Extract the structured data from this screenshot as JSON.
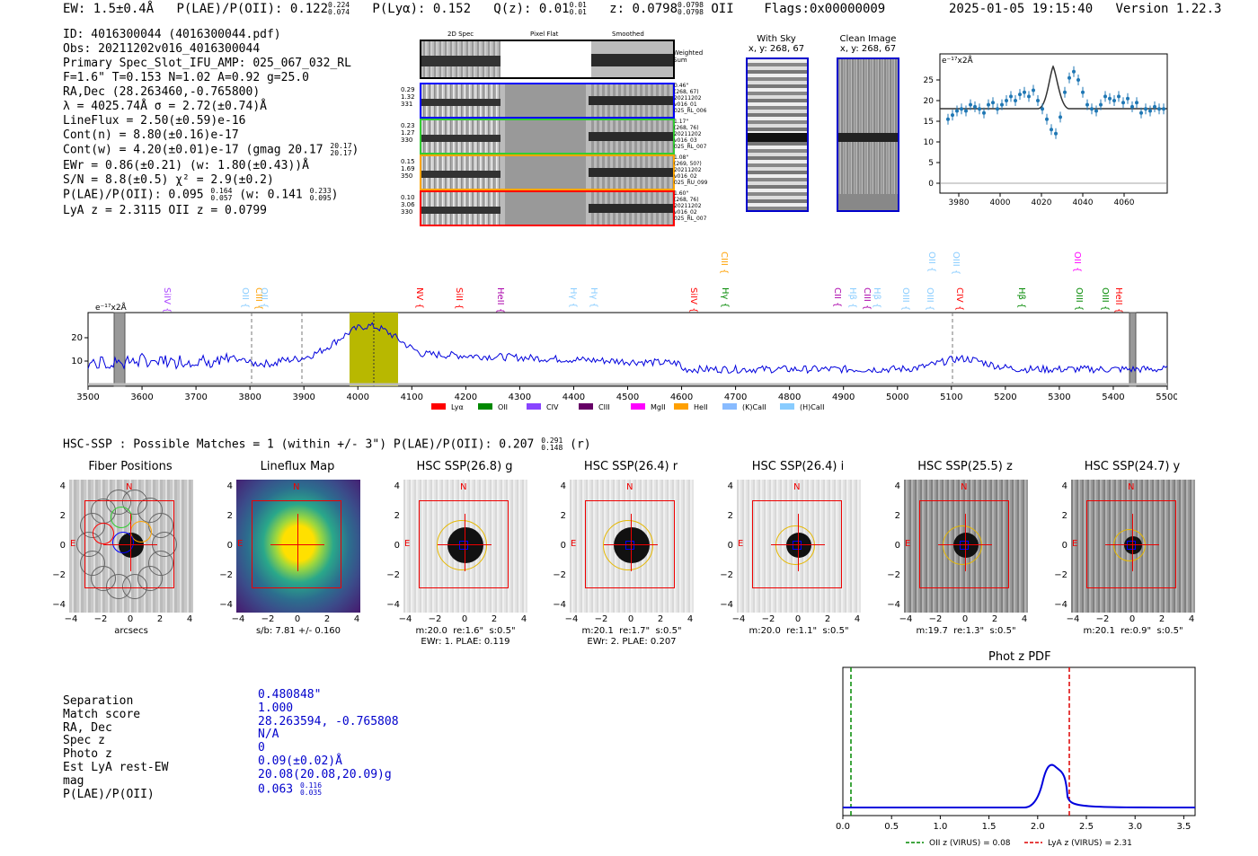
{
  "header": {
    "ew": "EW: 1.5±0.4Å",
    "plae_label": "P(LAE)/P(OII): 0.122",
    "plae_hi": "0.224",
    "plae_lo": "0.074",
    "plya": "P(Lyα): 0.152",
    "qz": "Q(z): 0.01",
    "qz_hi": "0.01",
    "qz_lo": "0.01",
    "z": "z: 0.0798",
    "z_hi": "0.0798",
    "z_lo": "0.0798",
    "z_line": "OII",
    "flags": "Flags:0x00000009",
    "timestamp": "2025-01-05 19:15:40",
    "version": "Version 1.22.3"
  },
  "info": {
    "lines": [
      "ID: 4016300044 (4016300044.pdf)",
      "Obs: 20211202v016_4016300044",
      "Primary Spec_Slot_IFU_AMP: 025_067_032_RL",
      "F=1.6\"  T=0.153  N=1.02  A=0.92  g=25.0",
      "RA,Dec (28.263460,-0.765800)",
      "λ = 4025.74Å  σ = 2.72(±0.74)Å",
      "LineFlux = 2.50(±0.59)e-16",
      "Cont(n) = 8.80(±0.16)e-17"
    ],
    "contw": "Cont(w) = 4.20(±0.01)e-17 (gmag 20.17",
    "contw_hi": "20.17",
    "contw_lo": "20.17",
    "contw_end": ")",
    "ewr": "EWr = 0.86(±0.21) (w: 1.80(±0.43))Å",
    "sn": "S/N = 8.8(±0.5)  χ² = 2.9(±0.2)",
    "plae2": "P(LAE)/P(OII): 0.095",
    "plae2_hi": "0.164",
    "plae2_lo": "0.057",
    "plae2_w": "(w: 0.141",
    "plae2_w_hi": "0.233",
    "plae2_w_lo": "0.095",
    "plae2_end": ")",
    "lya": "LyA z = 2.3115  OII z = 0.0799"
  },
  "cutouts": {
    "col_2d": "2D Spec",
    "col_flat": "Pixel Flat",
    "col_smooth": "Smoothed",
    "weighted": "Weighted Sum",
    "rows": [
      {
        "left": [
          "0.29",
          "1.32",
          "331"
        ],
        "right": [
          "0.46\"",
          "(268, 67)",
          "20211202",
          "v016_01",
          "025_RL_006"
        ],
        "color": "#0000ff"
      },
      {
        "left": [
          "0.23",
          "1.27",
          "330"
        ],
        "right": [
          "1.17\"",
          "(268, 76)",
          "20211202",
          "v016_03",
          "025_RL_007"
        ],
        "color": "#33cc33"
      },
      {
        "left": [
          "0.15",
          "1.69",
          "350"
        ],
        "right": [
          "1.08\"",
          "(269, 50?)",
          "20211202",
          "v016_02",
          "025_RU_099"
        ],
        "color": "#ffa500"
      },
      {
        "left": [
          "0.10",
          "3.06",
          "330"
        ],
        "right": [
          "1.60\"",
          "(268, 76)",
          "20211202",
          "v016_02",
          "025_RL_007"
        ],
        "color": "#ff0000"
      }
    ]
  },
  "sky": {
    "with_sky": "With Sky",
    "with_sky_xy": "x, y: 268, 67",
    "clean": "Clean Image",
    "clean_xy": "x, y: 268, 67"
  },
  "zoom_plot": {
    "units": "e⁻¹⁷x2Å",
    "x_ticks": [
      "3980",
      "4000",
      "4020",
      "4040",
      "4060"
    ],
    "y_ticks": [
      "0",
      "5",
      "10",
      "15",
      "20",
      "25"
    ]
  },
  "full_spec": {
    "units": "e⁻¹⁷x2Å",
    "x_ticks": [
      "3500",
      "3600",
      "3700",
      "3800",
      "3900",
      "4000",
      "4100",
      "4200",
      "4300",
      "4400",
      "4500",
      "4600",
      "4700",
      "4800",
      "4900",
      "5000",
      "5100",
      "5200",
      "5300",
      "5400",
      "5500"
    ],
    "y_ticks": [
      "10",
      "20"
    ],
    "legend": [
      {
        "label": "Lyα",
        "color": "#ff0000"
      },
      {
        "label": "OII",
        "color": "#008800"
      },
      {
        "label": "CIV",
        "color": "#8844ff"
      },
      {
        "label": "CIII",
        "color": "#660066"
      },
      {
        "label": "MgII",
        "color": "#ff00ff"
      },
      {
        "label": "HeII",
        "color": "#ffa000"
      },
      {
        "label": "(K)CaII",
        "color": "#88bbff"
      },
      {
        "label": "(H)CaII",
        "color": "#88ccff"
      }
    ],
    "line_labels": [
      {
        "text": "SiIV",
        "color": "#aa44ff",
        "row": 2
      },
      {
        "text": "OII",
        "color": "#88ccff",
        "row": 2
      },
      {
        "text": "CIII",
        "color": "#ffa000",
        "row": 2
      },
      {
        "text": "OII",
        "color": "#88ccff",
        "row": 2
      },
      {
        "text": "NV",
        "color": "#ff0000",
        "row": 2
      },
      {
        "text": "SiII",
        "color": "#ff0000",
        "row": 2
      },
      {
        "text": "HeII",
        "color": "#aa00aa",
        "row": 2
      },
      {
        "text": "Hγ",
        "color": "#88ccff",
        "row": 2
      },
      {
        "text": "Hγ",
        "color": "#88ccff",
        "row": 2
      },
      {
        "text": "SiIV",
        "color": "#ff0000",
        "row": 2
      },
      {
        "text": "CIII",
        "color": "#ffa000",
        "row": 0
      },
      {
        "text": "Hγ",
        "color": "#008800",
        "row": 2
      },
      {
        "text": "CII",
        "color": "#aa00aa",
        "row": 2
      },
      {
        "text": "Hβ",
        "color": "#88ccff",
        "row": 2
      },
      {
        "text": "CIII",
        "color": "#aa00aa",
        "row": 2
      },
      {
        "text": "Hβ",
        "color": "#88ccff",
        "row": 2
      },
      {
        "text": "OIII",
        "color": "#88ccff",
        "row": 2
      },
      {
        "text": "OII",
        "color": "#88ccff",
        "row": 0
      },
      {
        "text": "OIII",
        "color": "#88ccff",
        "row": 2
      },
      {
        "text": "OIII",
        "color": "#88ccff",
        "row": 0
      },
      {
        "text": "CIV",
        "color": "#ff0000",
        "row": 2
      },
      {
        "text": "Hβ",
        "color": "#008800",
        "row": 2
      },
      {
        "text": "OII",
        "color": "#ff00ff",
        "row": 0
      },
      {
        "text": "OIII",
        "color": "#008800",
        "row": 2
      },
      {
        "text": "OIII",
        "color": "#008800",
        "row": 2
      },
      {
        "text": "HeII",
        "color": "#ff0000",
        "row": 2
      }
    ]
  },
  "hsc": {
    "title": "HSC-SSP : Possible Matches = 1 (within +/- 3\")  P(LAE)/P(OII): 0.207",
    "title_hi": "0.291",
    "title_lo": "0.148",
    "title_end": "(r)",
    "panels": [
      {
        "title": "Fiber Positions",
        "sub1": "arcsecs",
        "sub2": ""
      },
      {
        "title": "Lineflux Map",
        "sub1": "s/b: 7.81 +/- 0.160",
        "sub2": ""
      },
      {
        "title": "HSC SSP(26.8) g",
        "sub1": "m:20.0  re:1.6\"  s:0.5\"",
        "sub2": "EWr: 1. PLAE: 0.119"
      },
      {
        "title": "HSC SSP(26.4) r",
        "sub1": "m:20.1  re:1.7\"  s:0.5\"",
        "sub2": "EWr: 2. PLAE: 0.207"
      },
      {
        "title": "HSC SSP(26.4) i",
        "sub1": "m:20.0  re:1.1\"  s:0.5\"",
        "sub2": ""
      },
      {
        "title": "HSC SSP(25.5) z",
        "sub1": "m:19.7  re:1.3\"  s:0.5\"",
        "sub2": ""
      },
      {
        "title": "HSC SSP(24.7) y",
        "sub1": "m:20.1  re:0.9\"  s:0.5\"",
        "sub2": ""
      }
    ],
    "ticks": [
      "4",
      "2",
      "0",
      "−2",
      "−4"
    ],
    "xticks": [
      "−4",
      "−2",
      "0",
      "2",
      "4"
    ],
    "north": "N",
    "east": "E"
  },
  "match": {
    "keys": [
      "Separation",
      "Match score",
      "RA, Dec",
      "Spec z",
      "Photo z",
      "Est LyA rest-EW",
      "mag",
      "P(LAE)/P(OII)"
    ],
    "vals": [
      "0.480848\"",
      "1.000",
      "28.263594, -0.765808",
      "N/A",
      "0",
      "0.09(±0.02)Å",
      "20.08(20.08,20.09)g",
      "0.063"
    ],
    "plae_hi": "0.116",
    "plae_lo": "0.035"
  },
  "photz": {
    "title": "Phot z PDF",
    "x_ticks": [
      "0.0",
      "0.5",
      "1.0",
      "1.5",
      "2.0",
      "2.5",
      "3.0",
      "3.5"
    ],
    "legend_oii": "OII z (VIRUS) = 0.08",
    "legend_lya": "LyA z (VIRUS) = 2.31",
    "oii_color": "#008800",
    "lya_color": "#dd0000"
  }
}
